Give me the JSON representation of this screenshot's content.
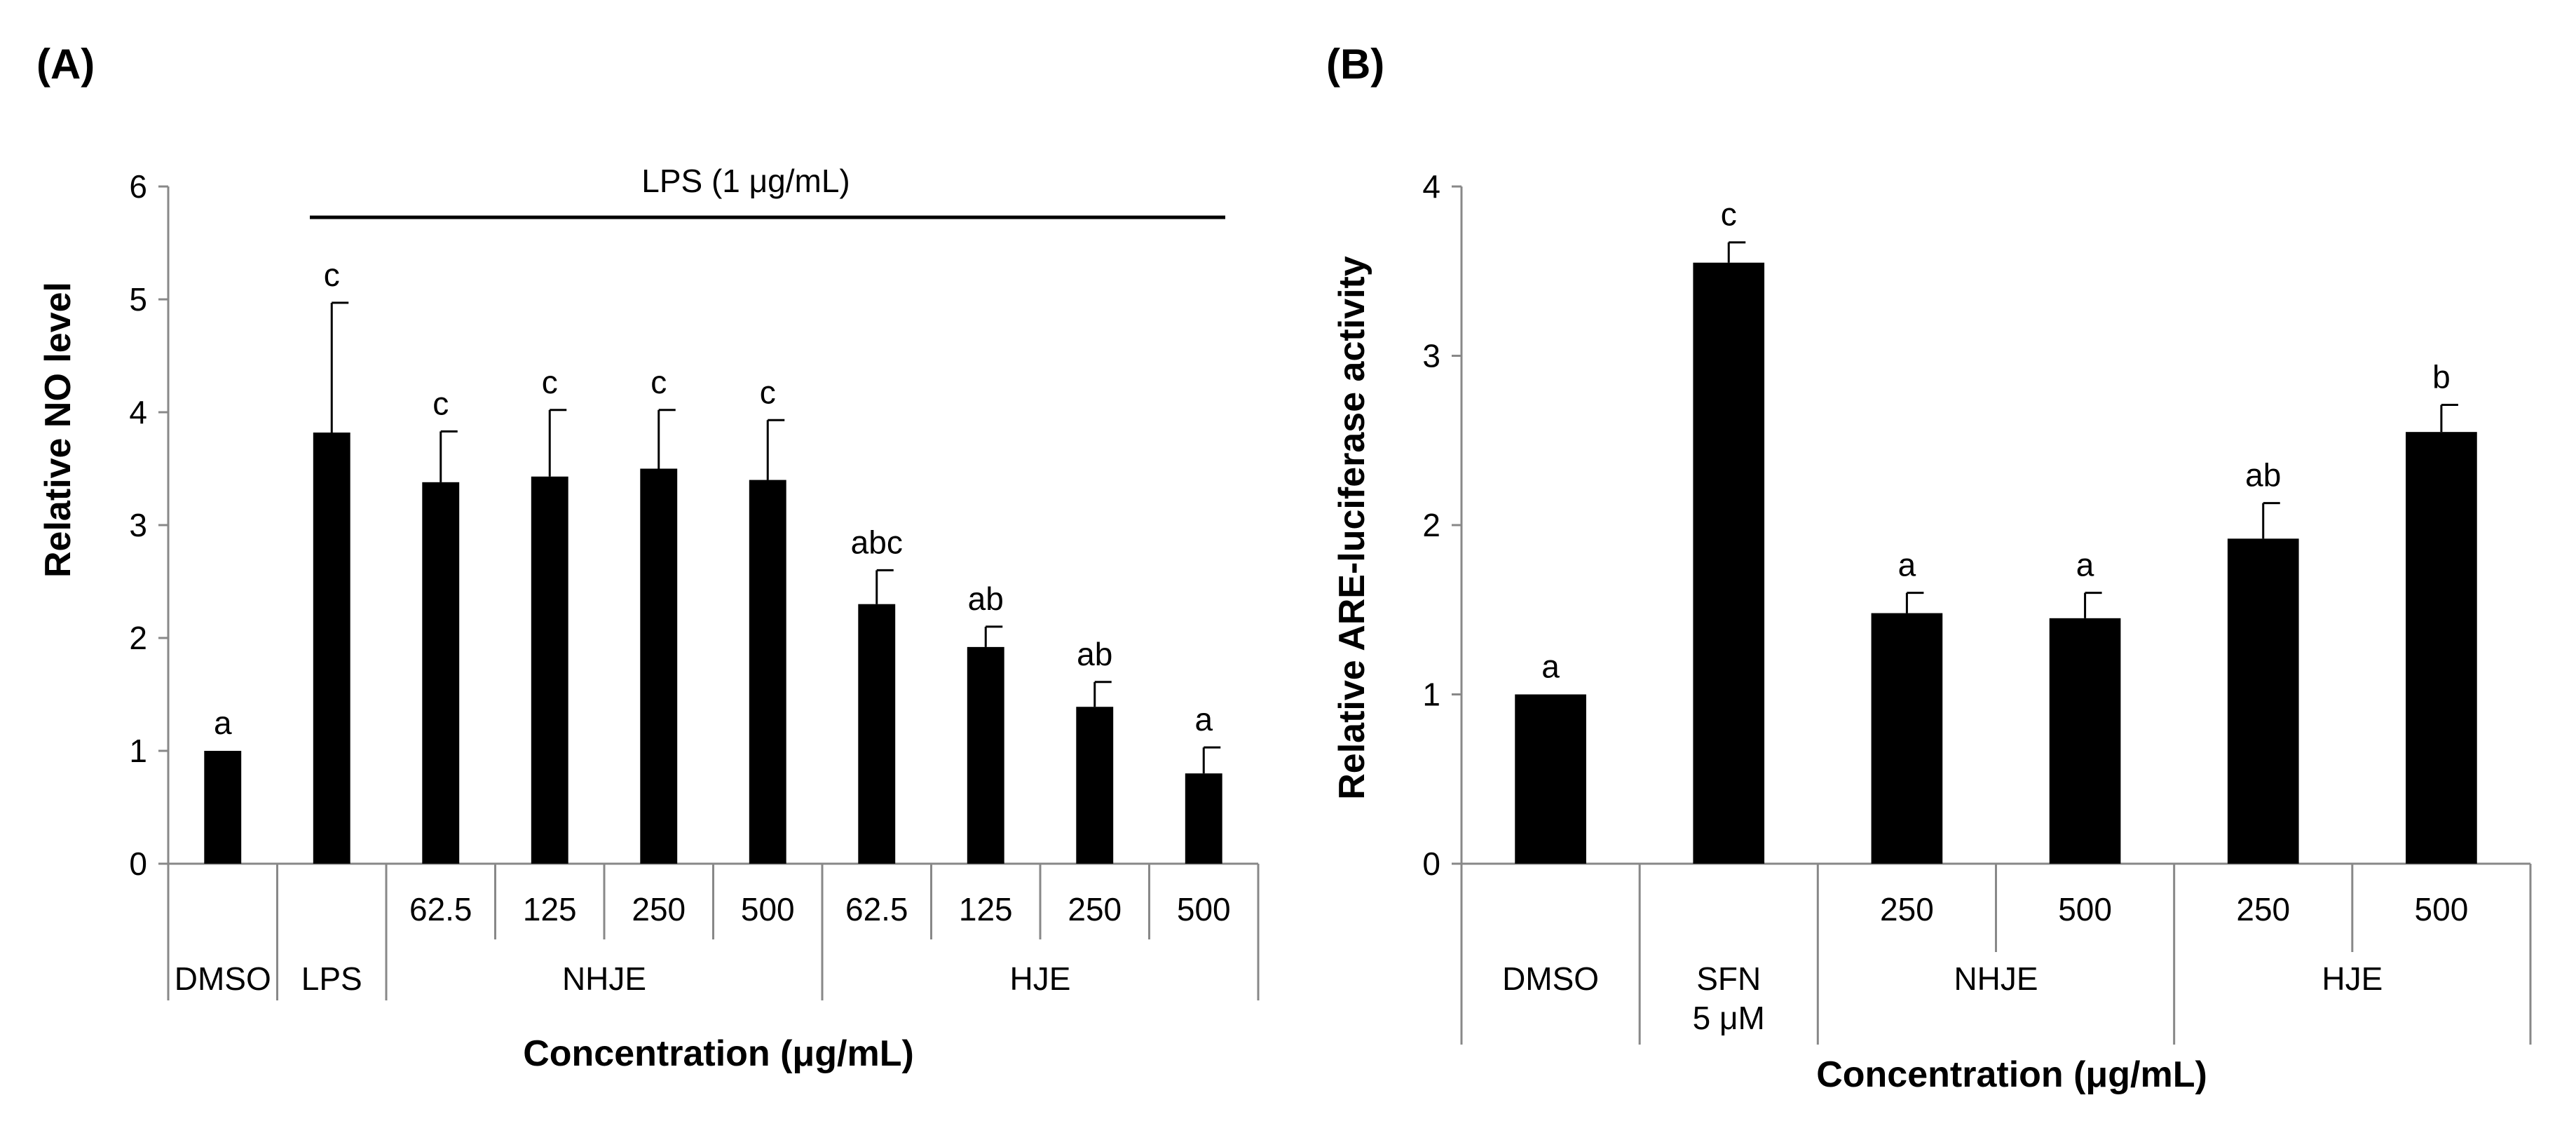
{
  "chart_data": [
    {
      "panel_label": "(A)",
      "type": "bar",
      "ylabel": "Relative NO level",
      "xlabel": "Concentration (μg/mL)",
      "ylim": [
        0,
        6
      ],
      "yticks": [
        "0",
        "1",
        "2",
        "3",
        "4",
        "5",
        "6"
      ],
      "treatment_label": "LPS (1 μg/mL)",
      "bars": [
        {
          "value": 1.0,
          "error": 0.0,
          "sig": "a",
          "level1": "",
          "group": "DMSO"
        },
        {
          "value": 3.82,
          "error": 1.15,
          "sig": "c",
          "level1": "",
          "group": "LPS"
        },
        {
          "value": 3.38,
          "error": 0.45,
          "sig": "c",
          "level1": "62.5",
          "group": "NHJE"
        },
        {
          "value": 3.43,
          "error": 0.59,
          "sig": "c",
          "level1": "125",
          "group": "NHJE"
        },
        {
          "value": 3.5,
          "error": 0.52,
          "sig": "c",
          "level1": "250",
          "group": "NHJE"
        },
        {
          "value": 3.4,
          "error": 0.53,
          "sig": "c",
          "level1": "500",
          "group": "NHJE"
        },
        {
          "value": 2.3,
          "error": 0.3,
          "sig": "abc",
          "level1": "62.5",
          "group": "HJE"
        },
        {
          "value": 1.92,
          "error": 0.18,
          "sig": "ab",
          "level1": "125",
          "group": "HJE"
        },
        {
          "value": 1.39,
          "error": 0.22,
          "sig": "ab",
          "level1": "250",
          "group": "HJE"
        },
        {
          "value": 0.8,
          "error": 0.23,
          "sig": "a",
          "level1": "500",
          "group": "HJE"
        }
      ],
      "groups": [
        {
          "name": "DMSO",
          "span": 1
        },
        {
          "name": "LPS",
          "span": 1
        },
        {
          "name": "NHJE",
          "span": 4
        },
        {
          "name": "HJE",
          "span": 4
        }
      ]
    },
    {
      "panel_label": "(B)",
      "type": "bar",
      "ylabel": "Relative ARE-luciferase activity",
      "xlabel": "Concentration (μg/mL)",
      "ylim": [
        0,
        4
      ],
      "yticks": [
        "0",
        "1",
        "2",
        "3",
        "4"
      ],
      "bars": [
        {
          "value": 1.0,
          "error": 0.0,
          "sig": "a",
          "level1": "",
          "group": "DMSO"
        },
        {
          "value": 3.55,
          "error": 0.12,
          "sig": "c",
          "level1": "",
          "group": "SFN 5 μM"
        },
        {
          "value": 1.48,
          "error": 0.12,
          "sig": "a",
          "level1": "250",
          "group": "NHJE"
        },
        {
          "value": 1.45,
          "error": 0.15,
          "sig": "a",
          "level1": "500",
          "group": "NHJE"
        },
        {
          "value": 1.92,
          "error": 0.21,
          "sig": "ab",
          "level1": "250",
          "group": "HJE"
        },
        {
          "value": 2.55,
          "error": 0.16,
          "sig": "b",
          "level1": "500",
          "group": "HJE"
        }
      ],
      "groups": [
        {
          "name": "DMSO",
          "span": 1
        },
        {
          "name": "SFN\n5 μM",
          "span": 1
        },
        {
          "name": "NHJE",
          "span": 2
        },
        {
          "name": "HJE",
          "span": 2
        }
      ]
    }
  ]
}
